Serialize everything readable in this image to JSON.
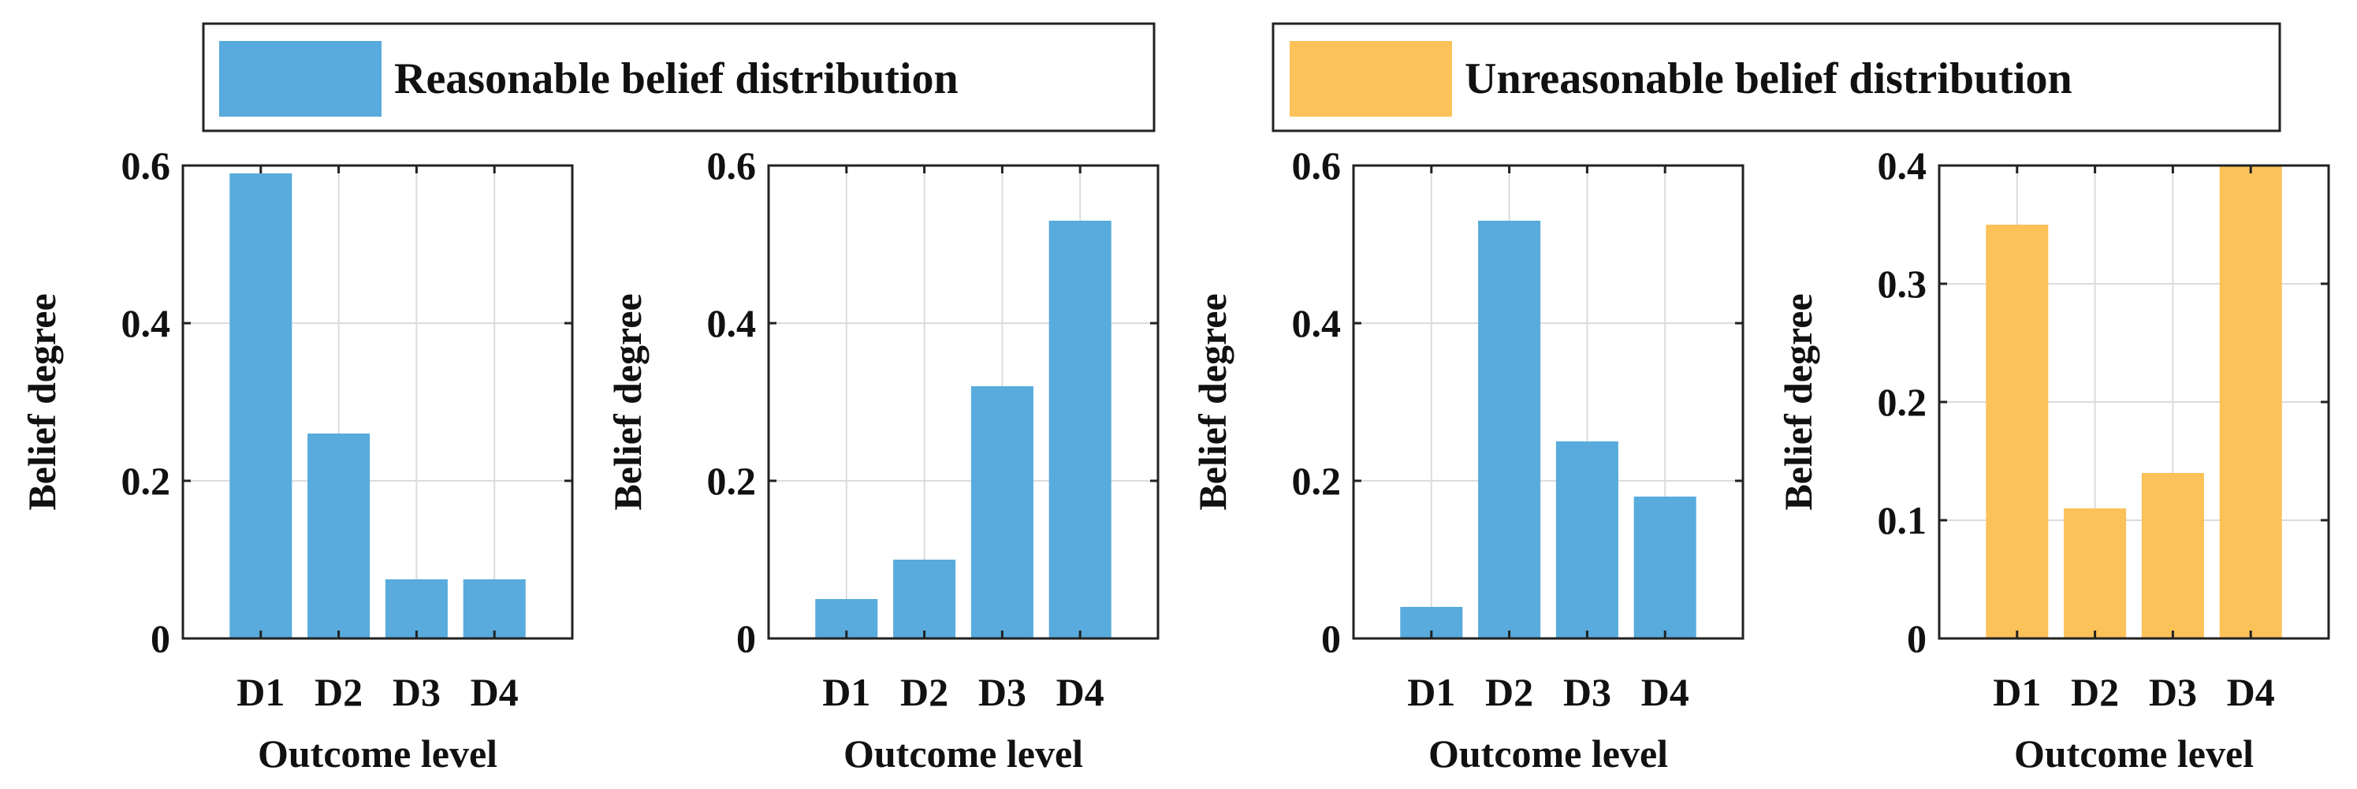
{
  "legend": {
    "items": [
      {
        "label": "Reasonable belief distribution",
        "color": "#58ABDC"
      },
      {
        "label": "Unreasonable belief distribution",
        "color": "#FBC25A"
      }
    ]
  },
  "chart_data": [
    {
      "type": "bar",
      "categories": [
        "D1",
        "D2",
        "D3",
        "D4"
      ],
      "values": [
        0.59,
        0.26,
        0.075,
        0.075
      ],
      "ylim": [
        0,
        0.6
      ],
      "yticks": [
        "0",
        "0.2",
        "0.4",
        "0.6"
      ],
      "ytick_values": [
        0,
        0.2,
        0.4,
        0.6
      ],
      "xlabel": "Outcome level",
      "ylabel": "Belief degree",
      "grid": true,
      "color": "#58ABDC",
      "legend_entry": "Reasonable belief distribution"
    },
    {
      "type": "bar",
      "categories": [
        "D1",
        "D2",
        "D3",
        "D4"
      ],
      "values": [
        0.05,
        0.1,
        0.32,
        0.53
      ],
      "ylim": [
        0,
        0.6
      ],
      "yticks": [
        "0",
        "0.2",
        "0.4",
        "0.6"
      ],
      "ytick_values": [
        0,
        0.2,
        0.4,
        0.6
      ],
      "xlabel": "Outcome level",
      "ylabel": "Belief degree",
      "grid": true,
      "color": "#58ABDC",
      "legend_entry": "Reasonable belief distribution"
    },
    {
      "type": "bar",
      "categories": [
        "D1",
        "D2",
        "D3",
        "D4"
      ],
      "values": [
        0.04,
        0.53,
        0.25,
        0.18
      ],
      "ylim": [
        0,
        0.6
      ],
      "yticks": [
        "0",
        "0.2",
        "0.4",
        "0.6"
      ],
      "ytick_values": [
        0,
        0.2,
        0.4,
        0.6
      ],
      "xlabel": "Outcome level",
      "ylabel": "Belief degree",
      "grid": true,
      "color": "#58ABDC",
      "legend_entry": "Reasonable belief distribution"
    },
    {
      "type": "bar",
      "categories": [
        "D1",
        "D2",
        "D3",
        "D4"
      ],
      "values": [
        0.35,
        0.11,
        0.14,
        0.4
      ],
      "ylim": [
        0,
        0.4
      ],
      "yticks": [
        "0",
        "0.1",
        "0.2",
        "0.3",
        "0.4"
      ],
      "ytick_values": [
        0,
        0.1,
        0.2,
        0.3,
        0.4
      ],
      "xlabel": "Outcome level",
      "ylabel": "Belief degree",
      "grid": true,
      "color": "#FBC25A",
      "legend_entry": "Unreasonable belief distribution"
    }
  ]
}
